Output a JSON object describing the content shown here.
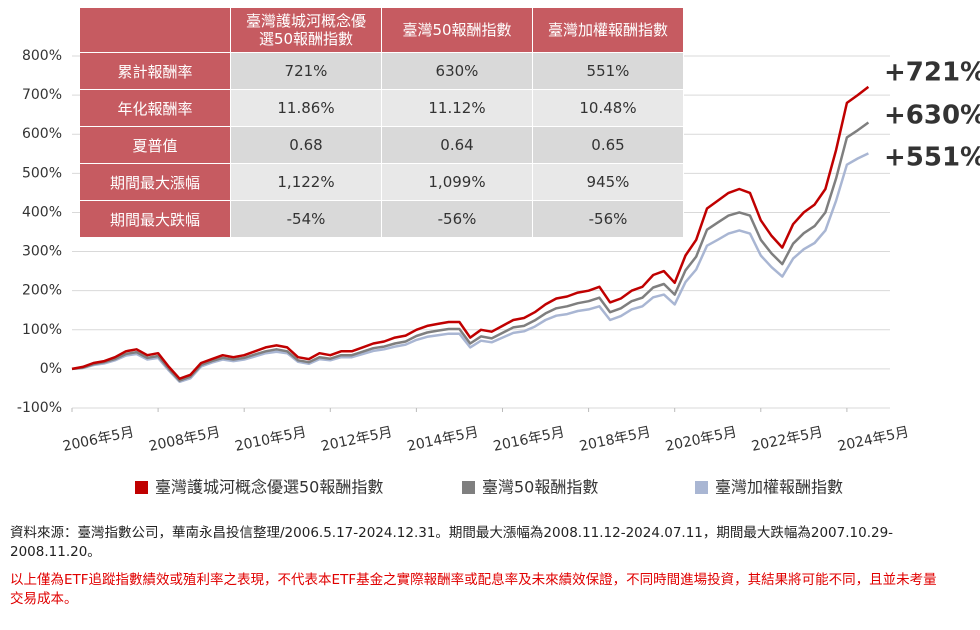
{
  "chart_data": {
    "type": "line",
    "x": [
      "2006-05",
      "2006-08",
      "2006-11",
      "2007-02",
      "2007-05",
      "2007-08",
      "2007-11",
      "2008-02",
      "2008-05",
      "2008-08",
      "2008-11",
      "2009-02",
      "2009-05",
      "2009-08",
      "2009-11",
      "2010-02",
      "2010-05",
      "2010-08",
      "2010-11",
      "2011-02",
      "2011-05",
      "2011-08",
      "2011-11",
      "2012-02",
      "2012-05",
      "2012-08",
      "2012-11",
      "2013-02",
      "2013-05",
      "2013-08",
      "2013-11",
      "2014-02",
      "2014-05",
      "2014-08",
      "2014-11",
      "2015-02",
      "2015-05",
      "2015-08",
      "2015-11",
      "2016-02",
      "2016-05",
      "2016-08",
      "2016-11",
      "2017-02",
      "2017-05",
      "2017-08",
      "2017-11",
      "2018-02",
      "2018-05",
      "2018-08",
      "2018-11",
      "2019-02",
      "2019-05",
      "2019-08",
      "2019-11",
      "2020-02",
      "2020-05",
      "2020-08",
      "2020-11",
      "2021-02",
      "2021-05",
      "2021-08",
      "2021-11",
      "2022-02",
      "2022-05",
      "2022-08",
      "2022-11",
      "2023-02",
      "2023-05",
      "2023-08",
      "2023-11",
      "2024-02",
      "2024-05",
      "2024-08",
      "2024-11"
    ],
    "series": [
      {
        "name": "臺灣護城河概念優選50報酬指數",
        "color": "#c00000",
        "values": [
          0,
          5,
          15,
          20,
          30,
          45,
          50,
          35,
          40,
          5,
          -25,
          -15,
          15,
          25,
          35,
          30,
          35,
          45,
          55,
          60,
          55,
          30,
          25,
          40,
          35,
          45,
          45,
          55,
          65,
          70,
          80,
          85,
          100,
          110,
          115,
          120,
          120,
          80,
          100,
          95,
          110,
          125,
          130,
          145,
          165,
          180,
          185,
          195,
          200,
          210,
          170,
          180,
          200,
          210,
          240,
          250,
          220,
          290,
          330,
          410,
          430,
          450,
          460,
          450,
          380,
          340,
          310,
          370,
          400,
          420,
          460,
          560,
          680,
          700,
          721
        ]
      },
      {
        "name": "臺灣50報酬指數",
        "color": "#7f7f7f",
        "values": [
          0,
          3,
          12,
          17,
          25,
          38,
          43,
          28,
          33,
          0,
          -30,
          -20,
          10,
          20,
          28,
          24,
          28,
          37,
          45,
          50,
          45,
          22,
          17,
          30,
          26,
          35,
          35,
          44,
          53,
          57,
          65,
          70,
          84,
          93,
          98,
          102,
          102,
          65,
          83,
          78,
          92,
          106,
          110,
          124,
          142,
          155,
          160,
          168,
          173,
          182,
          145,
          155,
          173,
          182,
          208,
          217,
          190,
          252,
          287,
          356,
          374,
          392,
          400,
          392,
          330,
          295,
          268,
          320,
          347,
          365,
          400,
          487,
          592,
          610,
          630
        ]
      },
      {
        "name": "臺灣加權報酬指數",
        "color": "#a9b6d3",
        "values": [
          0,
          2,
          10,
          14,
          22,
          34,
          38,
          24,
          28,
          -4,
          -33,
          -24,
          6,
          16,
          24,
          20,
          24,
          32,
          40,
          44,
          40,
          18,
          13,
          25,
          22,
          30,
          30,
          38,
          46,
          50,
          57,
          62,
          74,
          82,
          86,
          90,
          90,
          55,
          72,
          68,
          80,
          92,
          96,
          108,
          125,
          136,
          140,
          148,
          152,
          160,
          125,
          135,
          152,
          160,
          183,
          190,
          165,
          222,
          254,
          315,
          330,
          346,
          354,
          346,
          290,
          260,
          236,
          282,
          306,
          322,
          354,
          430,
          522,
          538,
          551
        ]
      }
    ],
    "end_labels": [
      "+721%",
      "+630%",
      "+551%"
    ],
    "xlim": [
      "2006-05",
      "2024-12"
    ],
    "xticks": [
      {
        "value": "2006-05",
        "label": "2006年5月"
      },
      {
        "value": "2008-05",
        "label": "2008年5月"
      },
      {
        "value": "2010-05",
        "label": "2010年5月"
      },
      {
        "value": "2012-05",
        "label": "2012年5月"
      },
      {
        "value": "2014-05",
        "label": "2014年5月"
      },
      {
        "value": "2016-05",
        "label": "2016年5月"
      },
      {
        "value": "2018-05",
        "label": "2018年5月"
      },
      {
        "value": "2020-05",
        "label": "2020年5月"
      },
      {
        "value": "2022-05",
        "label": "2022年5月"
      },
      {
        "value": "2024-05",
        "label": "2024年5月"
      }
    ],
    "ylim": [
      -100,
      800
    ],
    "yticks": [
      {
        "value": -100,
        "label": "-100%"
      },
      {
        "value": 0,
        "label": "0%"
      },
      {
        "value": 100,
        "label": "100%"
      },
      {
        "value": 200,
        "label": "200%"
      },
      {
        "value": 300,
        "label": "300%"
      },
      {
        "value": 400,
        "label": "400%"
      },
      {
        "value": 500,
        "label": "500%"
      },
      {
        "value": 600,
        "label": "600%"
      },
      {
        "value": 700,
        "label": "700%"
      },
      {
        "value": 800,
        "label": "800%"
      }
    ],
    "grid": true
  },
  "table": {
    "columns": [
      "臺灣護城河概念優選50報酬指數",
      "臺灣50報酬指數",
      "臺灣加權報酬指數"
    ],
    "rows": [
      {
        "label": "累計報酬率",
        "values": [
          "721%",
          "630%",
          "551%"
        ]
      },
      {
        "label": "年化報酬率",
        "values": [
          "11.86%",
          "11.12%",
          "10.48%"
        ]
      },
      {
        "label": "夏普值",
        "values": [
          "0.68",
          "0.64",
          "0.65"
        ]
      },
      {
        "label": "期間最大漲幅",
        "values": [
          "1,122%",
          "1,099%",
          "945%"
        ]
      },
      {
        "label": "期間最大跌幅",
        "values": [
          "-54%",
          "-56%",
          "-56%"
        ]
      }
    ]
  },
  "notes": {
    "source": "資料來源：臺灣指數公司，華南永昌投信整理/2006.5.17-2024.12.31。期間最大漲幅為2008.11.12-2024.07.11，期間最大跌幅為2007.10.29-2008.11.20。",
    "disclaimer": "以上僅為ETF追蹤指數績效或殖利率之表現，不代表本ETF基金之實際報酬率或配息率及未來績效保證，不同時間進場投資，其結果將可能不同，且並未考量交易成本。"
  }
}
